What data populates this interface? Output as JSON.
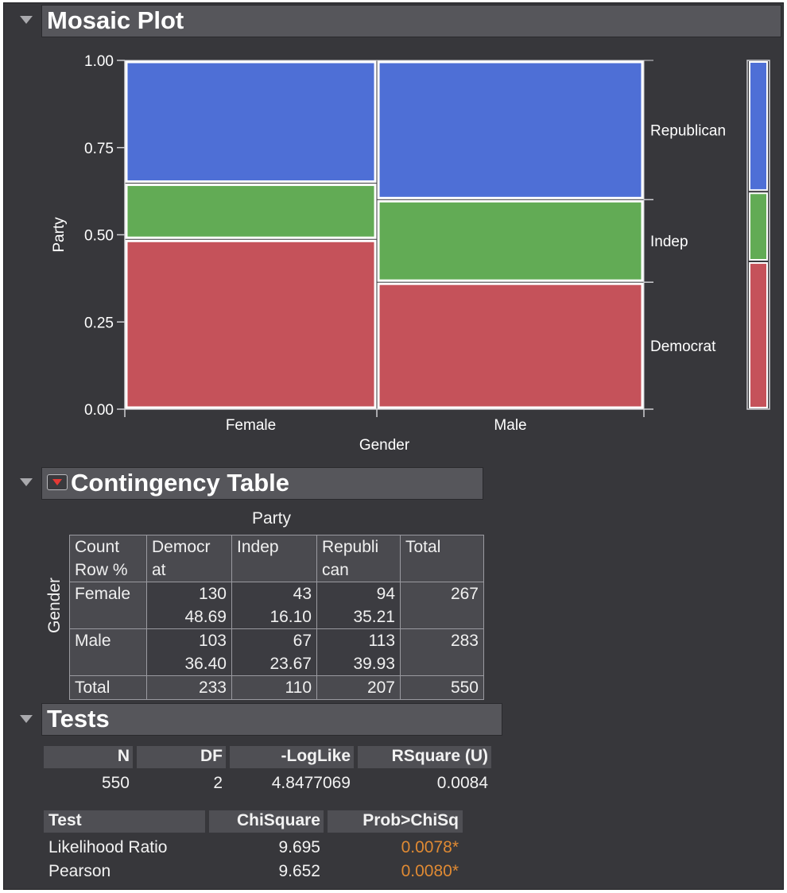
{
  "sections": {
    "mosaic_title": "Mosaic Plot",
    "contingency_title": "Contingency Table",
    "tests_title": "Tests"
  },
  "chart_data": {
    "type": "mosaic",
    "xlabel": "Gender",
    "ylabel": "Party",
    "yticks": [
      "0.00",
      "0.25",
      "0.50",
      "0.75",
      "1.00"
    ],
    "ylim": [
      0,
      1
    ],
    "categories": [
      "Female",
      "Male"
    ],
    "x_widths": [
      0.4855,
      0.5145
    ],
    "series": [
      {
        "name": "Democrat",
        "color": "#c5525a",
        "values": [
          0.4869,
          0.364
        ]
      },
      {
        "name": "Indep",
        "color": "#62ab55",
        "values": [
          0.161,
          0.2367
        ]
      },
      {
        "name": "Republican",
        "color": "#4e6fd6",
        "values": [
          0.3521,
          0.3993
        ]
      }
    ],
    "marginal": {
      "Democrat": 0.4236,
      "Indep": 0.2,
      "Republican": 0.3764
    }
  },
  "contingency": {
    "col_var": "Party",
    "row_var": "Gender",
    "corner_line1": "Count",
    "corner_line2": "Row %",
    "col_headers": [
      {
        "l1": "Democr",
        "l2": "at"
      },
      {
        "l1": "Indep",
        "l2": ""
      },
      {
        "l1": "Republi",
        "l2": "can"
      },
      {
        "l1": "Total",
        "l2": ""
      }
    ],
    "rows": [
      {
        "label": "Female",
        "counts": [
          "130",
          "43",
          "94",
          "267"
        ],
        "pcts": [
          "48.69",
          "16.10",
          "35.21"
        ]
      },
      {
        "label": "Male",
        "counts": [
          "103",
          "67",
          "113",
          "283"
        ],
        "pcts": [
          "36.40",
          "23.67",
          "39.93"
        ]
      }
    ],
    "total_row": {
      "label": "Total",
      "values": [
        "233",
        "110",
        "207",
        "550"
      ]
    }
  },
  "tests": {
    "summary_headers": [
      "N",
      "DF",
      "-LogLike",
      "RSquare (U)"
    ],
    "summary_values": [
      "550",
      "2",
      "4.8477069",
      "0.0084"
    ],
    "test_headers": [
      "Test",
      "ChiSquare",
      "Prob>ChiSq"
    ],
    "test_rows": [
      {
        "name": "Likelihood Ratio",
        "chisq": "9.695",
        "prob": "0.0078*"
      },
      {
        "name": "Pearson",
        "chisq": "9.652",
        "prob": "0.0080*"
      }
    ],
    "significant_color": "#e08a33"
  }
}
